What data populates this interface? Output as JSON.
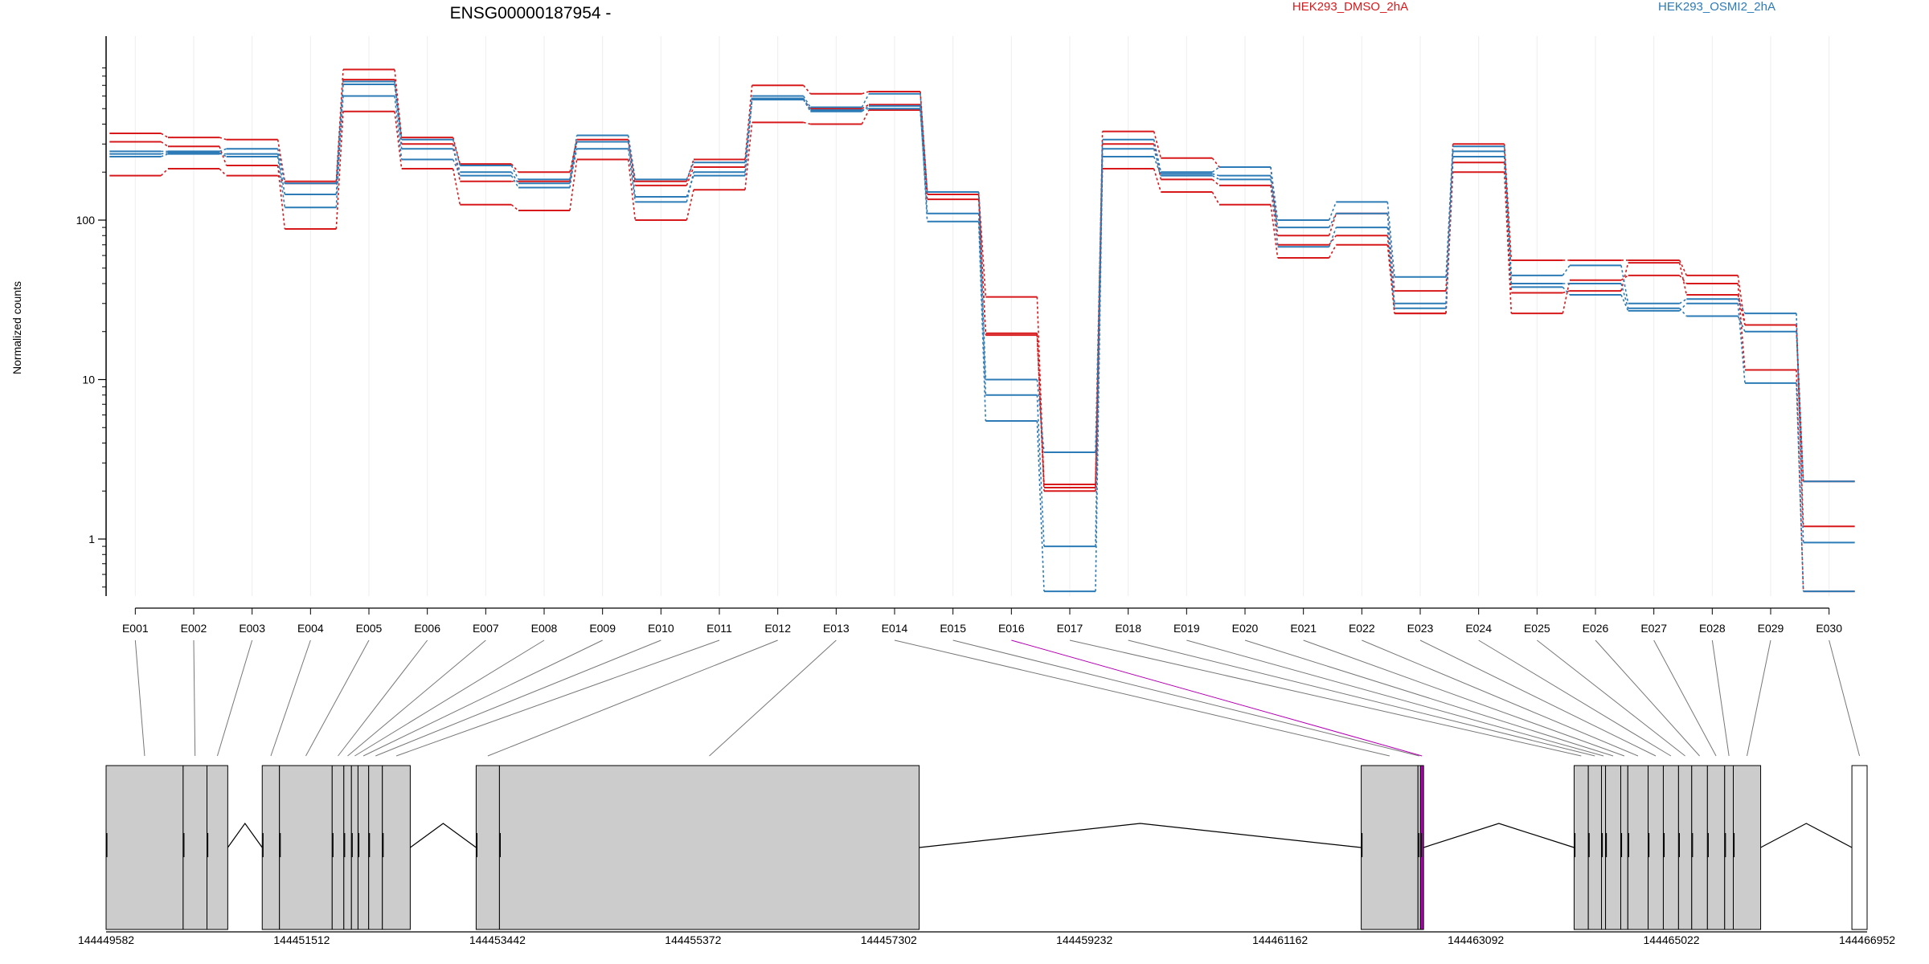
{
  "chart_data": {
    "type": "line",
    "title": "ENSG00000187954 -",
    "xlabel": "",
    "ylabel": "Normalized counts",
    "y_scale": "log",
    "ylim": [
      0.35,
      1000
    ],
    "y_ticks": [
      {
        "value": 1,
        "label": "1"
      },
      {
        "value": 10,
        "label": "10"
      },
      {
        "value": 100,
        "label": "100"
      }
    ],
    "colors": {
      "HEK293_DMSO_2hA": "#d7191c",
      "HEK293_OSMI2_2hA": "#2c7bb6",
      "highlight": "#b400b4",
      "exon_fill": "#cccccc",
      "intron_line": "#000000",
      "connector": "#777777"
    },
    "legend": [
      {
        "name": "HEK293_DMSO_2hA",
        "color": "#d7191c"
      },
      {
        "name": "HEK293_OSMI2_2hA",
        "color": "#2c7bb6"
      }
    ],
    "categories": [
      "E001",
      "E002",
      "E003",
      "E004",
      "E005",
      "E006",
      "E007",
      "E008",
      "E009",
      "E010",
      "E011",
      "E012",
      "E013",
      "E014",
      "E015",
      "E016",
      "E017",
      "E018",
      "E019",
      "E020",
      "E021",
      "E022",
      "E023",
      "E024",
      "E025",
      "E026",
      "E027",
      "E028",
      "E029",
      "E030"
    ],
    "highlight_exon": "E016",
    "series": [
      {
        "group": "HEK293_DMSO_2hA",
        "values": [
          350,
          330,
          320,
          175,
          880,
          330,
          225,
          200,
          320,
          175,
          240,
          700,
          620,
          640,
          150,
          33,
          2.2,
          360,
          245,
          215,
          80,
          110,
          36,
          300,
          56,
          56,
          56,
          45,
          22,
          1.2
        ]
      },
      {
        "group": "HEK293_DMSO_2hA",
        "values": [
          310,
          290,
          220,
          88,
          480,
          210,
          125,
          115,
          240,
          100,
          155,
          410,
          400,
          490,
          135,
          19,
          2,
          210,
          150,
          125,
          58,
          70,
          26,
          200,
          26,
          42,
          45,
          40,
          11.5,
          0.47
        ]
      },
      {
        "group": "HEK293_DMSO_2hA",
        "values": [
          190,
          210,
          190,
          170,
          760,
          300,
          175,
          175,
          310,
          165,
          215,
          570,
          500,
          530,
          145,
          19.5,
          2.1,
          300,
          180,
          165,
          70,
          80,
          26,
          230,
          35,
          36,
          54,
          34,
          22,
          2.3
        ]
      },
      {
        "group": "HEK293_OSMI2_2hA",
        "values": [
          270,
          270,
          280,
          170,
          740,
          320,
          220,
          180,
          340,
          180,
          230,
          600,
          510,
          620,
          150,
          10,
          3.5,
          320,
          200,
          215,
          100,
          130,
          44,
          290,
          45,
          52,
          30,
          32,
          26,
          0.95
        ]
      },
      {
        "group": "HEK293_OSMI2_2hA",
        "values": [
          250,
          260,
          260,
          145,
          600,
          240,
          190,
          160,
          310,
          140,
          190,
          570,
          480,
          520,
          98,
          5.5,
          0.47,
          250,
          190,
          180,
          90,
          110,
          30,
          270,
          40,
          40,
          28,
          25,
          20,
          2.3
        ]
      },
      {
        "group": "HEK293_OSMI2_2hA",
        "values": [
          260,
          265,
          250,
          120,
          710,
          280,
          200,
          170,
          280,
          130,
          200,
          580,
          490,
          500,
          110,
          8,
          0.9,
          280,
          195,
          190,
          68,
          90,
          28,
          250,
          38,
          34,
          27,
          30,
          9.5,
          0.47
        ]
      }
    ],
    "gene_model": {
      "coordinate_ticks": [
        "144449582",
        "144451512",
        "144453442",
        "144455372",
        "144457302",
        "144459232",
        "144461162",
        "144463092",
        "144465022",
        "144466952"
      ],
      "coordinate_start": 144449582,
      "coordinate_end": 144466952,
      "exons": [
        {
          "name": "E001",
          "start": 144449582,
          "end": 144450342
        },
        {
          "name": "E002",
          "start": 144450342,
          "end": 144450577
        },
        {
          "name": "E003",
          "start": 144450577,
          "end": 144450782
        },
        {
          "name": "E004",
          "start": 144451122,
          "end": 144451292
        },
        {
          "name": "E005",
          "start": 144451292,
          "end": 144451812
        },
        {
          "name": "E006",
          "start": 144451812,
          "end": 144451927
        },
        {
          "name": "E007",
          "start": 144451927,
          "end": 144452002
        },
        {
          "name": "E008",
          "start": 144452002,
          "end": 144452067
        },
        {
          "name": "E009",
          "start": 144452067,
          "end": 144452172
        },
        {
          "name": "E010",
          "start": 144452172,
          "end": 144452307
        },
        {
          "name": "E011",
          "start": 144452307,
          "end": 144452582
        },
        {
          "name": "E012",
          "start": 144453232,
          "end": 144453462
        },
        {
          "name": "E013",
          "start": 144453462,
          "end": 144457602
        },
        {
          "name": "E014",
          "start": 144461962,
          "end": 144462522
        },
        {
          "name": "E015",
          "start": 144462522,
          "end": 144462547
        },
        {
          "name": "E016",
          "start": 144462547,
          "end": 144462577
        },
        {
          "name": "E017",
          "start": 144464062,
          "end": 144464202
        },
        {
          "name": "E018",
          "start": 144464202,
          "end": 144464332
        },
        {
          "name": "E019",
          "start": 144464332,
          "end": 144464372
        },
        {
          "name": "E020",
          "start": 144464372,
          "end": 144464522
        },
        {
          "name": "E021",
          "start": 144464522,
          "end": 144464592
        },
        {
          "name": "E022",
          "start": 144464592,
          "end": 144464792
        },
        {
          "name": "E023",
          "start": 144464792,
          "end": 144464942
        },
        {
          "name": "E024",
          "start": 144464942,
          "end": 144465092
        },
        {
          "name": "E025",
          "start": 144465092,
          "end": 144465222
        },
        {
          "name": "E026",
          "start": 144465222,
          "end": 144465377
        },
        {
          "name": "E027",
          "start": 144465377,
          "end": 144465547
        },
        {
          "name": "E028",
          "start": 144465547,
          "end": 144465632
        },
        {
          "name": "E029",
          "start": 144465632,
          "end": 144465902
        },
        {
          "name": "E030",
          "start": 144466802,
          "end": 144466952
        }
      ]
    }
  }
}
